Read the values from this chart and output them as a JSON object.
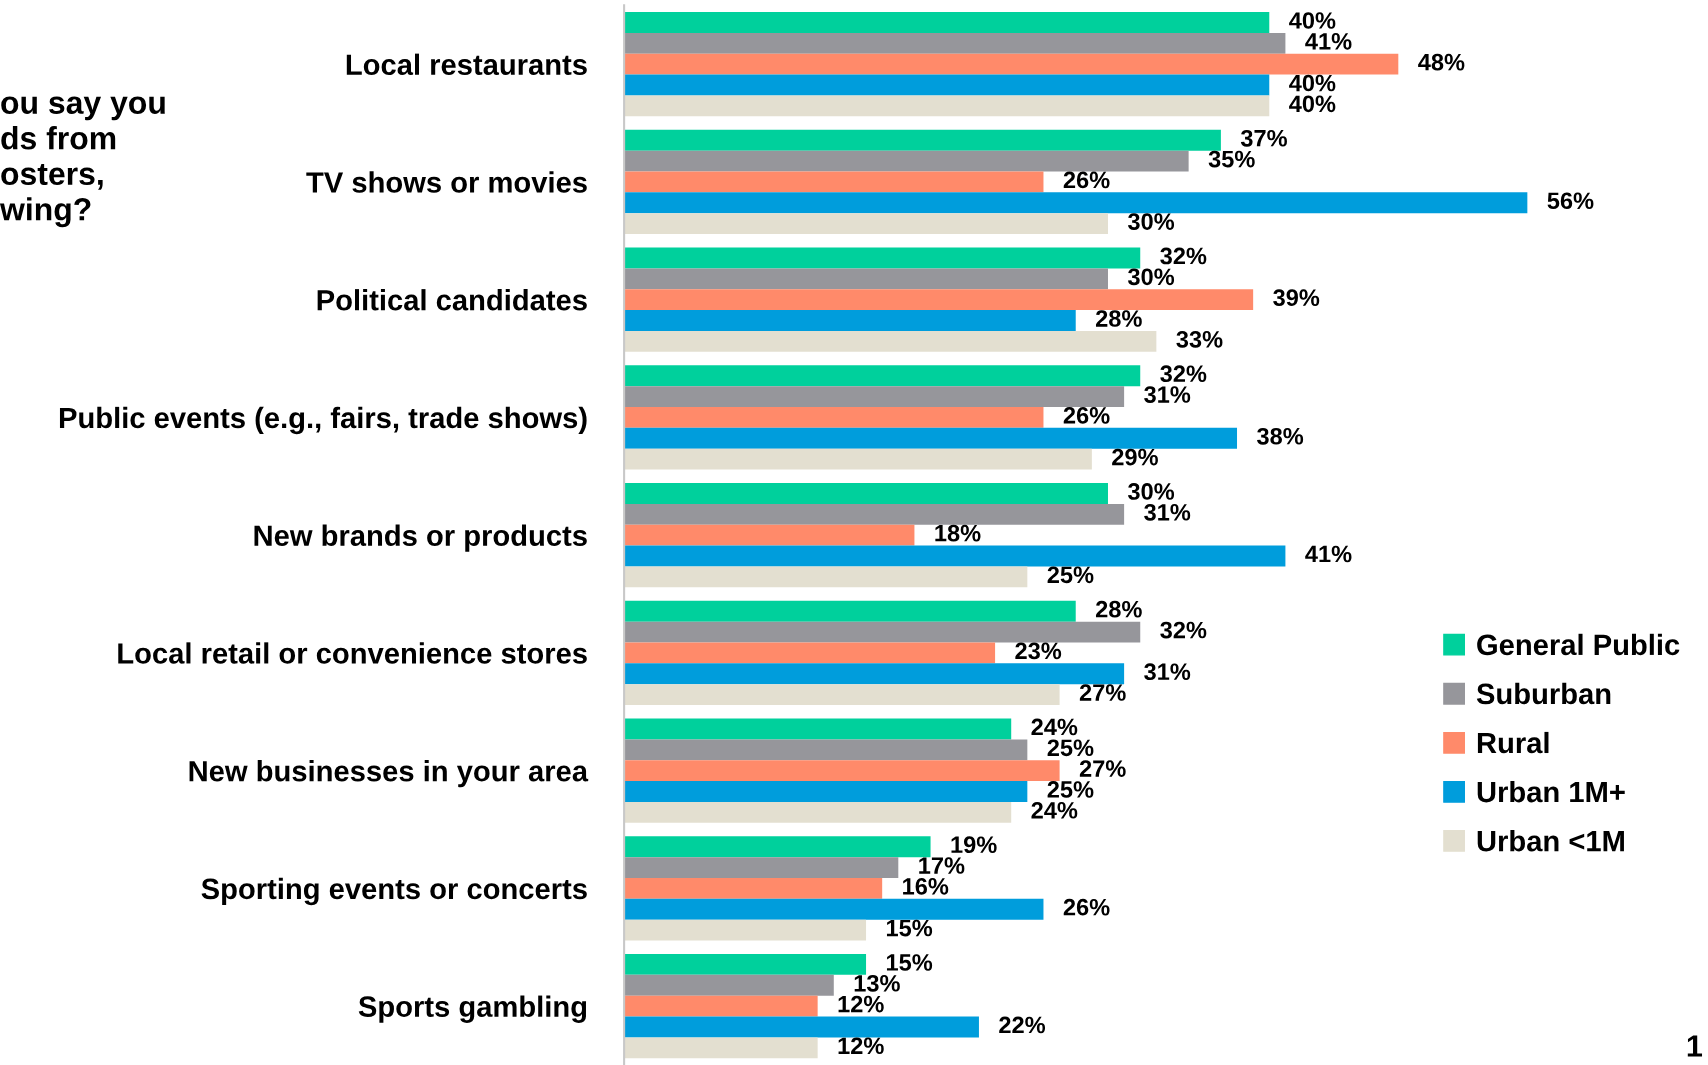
{
  "chart_data": {
    "type": "bar",
    "orientation": "horizontal",
    "title": "ou say you\nds from\nosters,\nwing?",
    "categories": [
      "Local restaurants",
      "TV shows or movies",
      "Political candidates",
      "Public events (e.g., fairs, trade shows)",
      "New brands or products",
      "Local retail or convenience stores",
      "New businesses in your area",
      "Sporting events or concerts",
      "Sports gambling"
    ],
    "series": [
      {
        "name": "General Public",
        "color": "#00d09c",
        "values": [
          40,
          37,
          32,
          32,
          30,
          28,
          24,
          19,
          15
        ],
        "value_labels": [
          "40%",
          "37%",
          "32%",
          "32%",
          "30%",
          "28%",
          "24%",
          "19%",
          "15%"
        ]
      },
      {
        "name": "Suburban",
        "color": "#96969b",
        "values": [
          41,
          35,
          30,
          31,
          31,
          32,
          25,
          17,
          13
        ],
        "value_labels": [
          "41%",
          "35%",
          "30%",
          "31%",
          "31%",
          "32%",
          "25%",
          "17%",
          "13%"
        ]
      },
      {
        "name": "Rural",
        "color": "#ff8a6a",
        "values": [
          48,
          26,
          39,
          26,
          18,
          23,
          27,
          16,
          12
        ],
        "value_labels": [
          "48%",
          "26%",
          "39%",
          "26%",
          "18%",
          "23%",
          "27%",
          "16%",
          "12%"
        ]
      },
      {
        "name": "Urban 1M+",
        "color": "#009ddc",
        "values": [
          40,
          56,
          28,
          38,
          41,
          31,
          25,
          26,
          22
        ],
        "value_labels": [
          "40%",
          "56%",
          "28%",
          "38%",
          "41%",
          "31%",
          "25%",
          "26%",
          "22%"
        ]
      },
      {
        "name": "Urban <1M",
        "color": "#e3dfd0",
        "values": [
          40,
          30,
          33,
          29,
          25,
          27,
          24,
          15,
          12
        ],
        "value_labels": [
          "40%",
          "30%",
          "33%",
          "29%",
          "25%",
          "27%",
          "24%",
          "15%",
          "12%"
        ]
      }
    ],
    "legend": "right",
    "grid": false,
    "annotations": [
      "1"
    ]
  }
}
